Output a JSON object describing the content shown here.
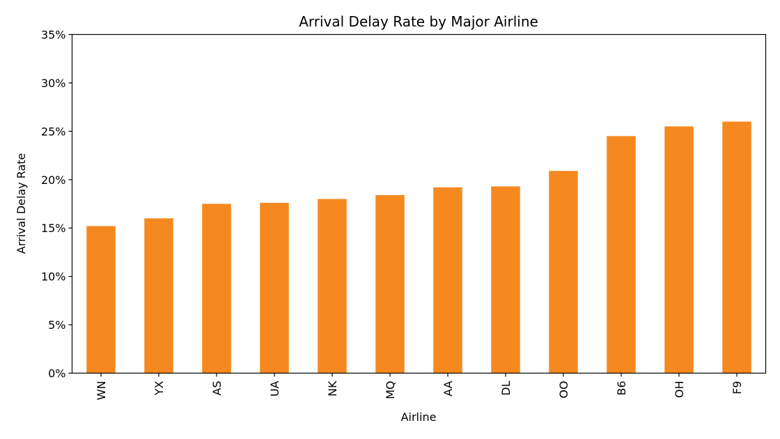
{
  "chart_data": {
    "type": "bar",
    "title": "Arrival Delay Rate by Major Airline",
    "xlabel": "Airline",
    "ylabel": "Arrival Delay Rate",
    "categories": [
      "WN",
      "YX",
      "AS",
      "UA",
      "NK",
      "MQ",
      "AA",
      "DL",
      "OO",
      "B6",
      "OH",
      "F9"
    ],
    "values": [
      15.2,
      16.0,
      17.5,
      17.6,
      18.0,
      18.4,
      19.2,
      19.3,
      20.9,
      24.5,
      25.5,
      26.0
    ],
    "ylim": [
      0,
      35
    ],
    "yticks": [
      0,
      5,
      10,
      15,
      20,
      25,
      30,
      35
    ],
    "ytick_labels": [
      "0%",
      "5%",
      "10%",
      "15%",
      "20%",
      "25%",
      "30%",
      "35%"
    ],
    "bar_color": "#f5891f",
    "grid": false,
    "legend": "none"
  }
}
